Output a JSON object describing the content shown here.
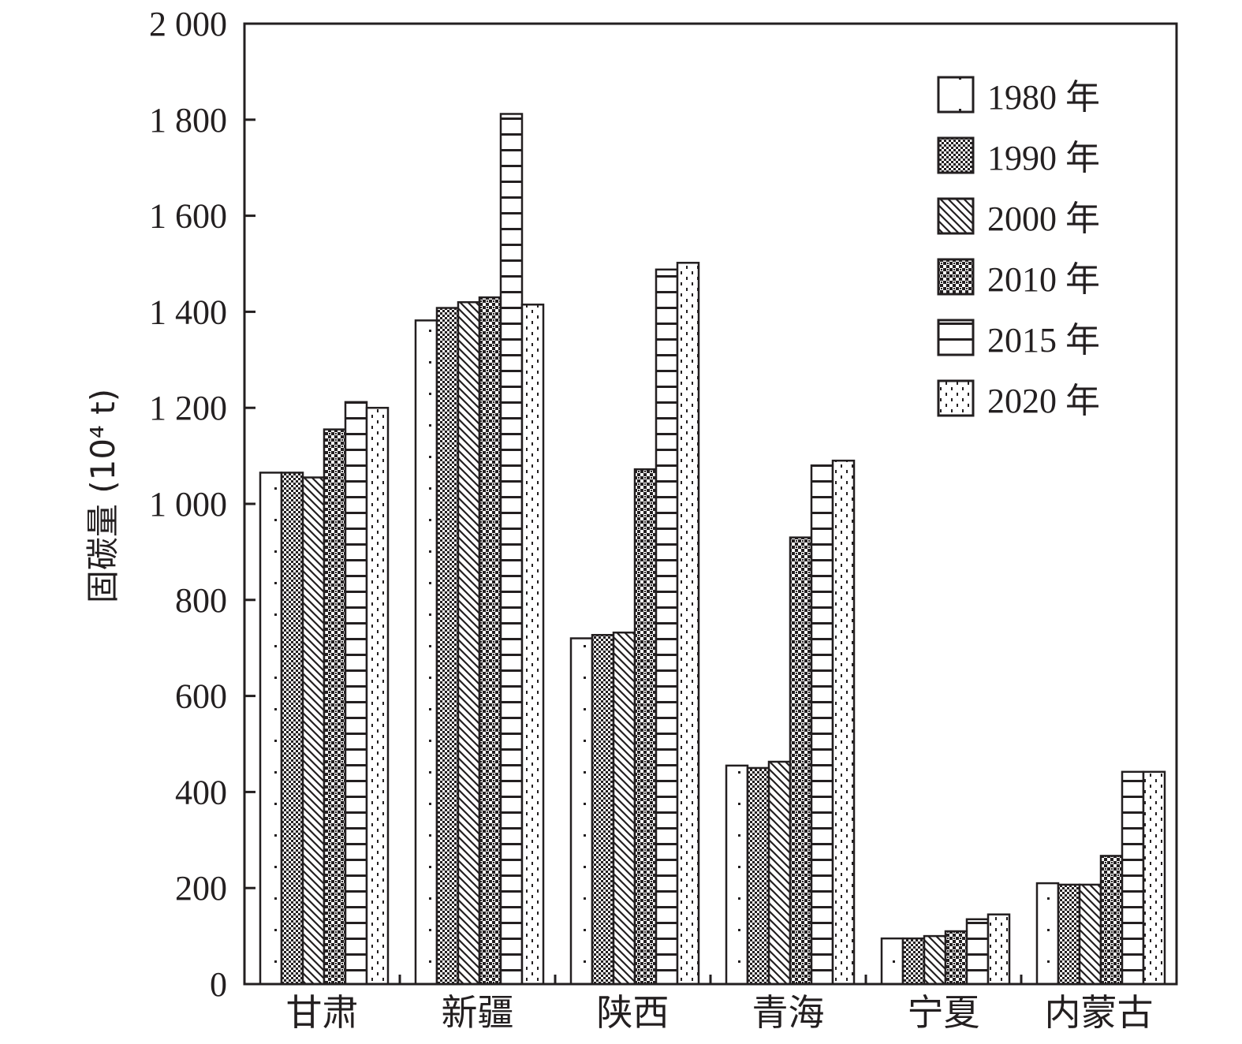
{
  "chart_data": {
    "type": "bar",
    "title": "",
    "xlabel": "",
    "ylabel": "固碳量 (10⁴ t)",
    "ylim": [
      0,
      2000
    ],
    "yticks": [
      0,
      200,
      400,
      600,
      800,
      1000,
      1200,
      1400,
      1600,
      1800,
      2000
    ],
    "ytick_labels": [
      "0",
      "200",
      "400",
      "600",
      "800",
      "1 000",
      "1 200",
      "1 400",
      "1 600",
      "1 800",
      "2 000"
    ],
    "categories": [
      "甘肃",
      "新疆",
      "陕西",
      "青海",
      "宁夏",
      "内蒙古"
    ],
    "legend_position": "top-right",
    "grid": false,
    "series": [
      {
        "name": "1980 年",
        "pattern": "sparse-dots",
        "values": [
          1065,
          1382,
          720,
          455,
          95,
          210
        ]
      },
      {
        "name": "1990 年",
        "pattern": "checker",
        "values": [
          1065,
          1408,
          727,
          450,
          95,
          207
        ]
      },
      {
        "name": "2000 年",
        "pattern": "diagonal",
        "values": [
          1055,
          1420,
          732,
          463,
          100,
          207
        ]
      },
      {
        "name": "2010 年",
        "pattern": "dense-checker",
        "values": [
          1155,
          1430,
          1072,
          930,
          110,
          267
        ]
      },
      {
        "name": "2015 年",
        "pattern": "horizontal",
        "values": [
          1212,
          1812,
          1488,
          1080,
          135,
          442
        ]
      },
      {
        "name": "2020 年",
        "pattern": "dashed-dots",
        "values": [
          1200,
          1415,
          1502,
          1090,
          145,
          442
        ]
      }
    ]
  }
}
